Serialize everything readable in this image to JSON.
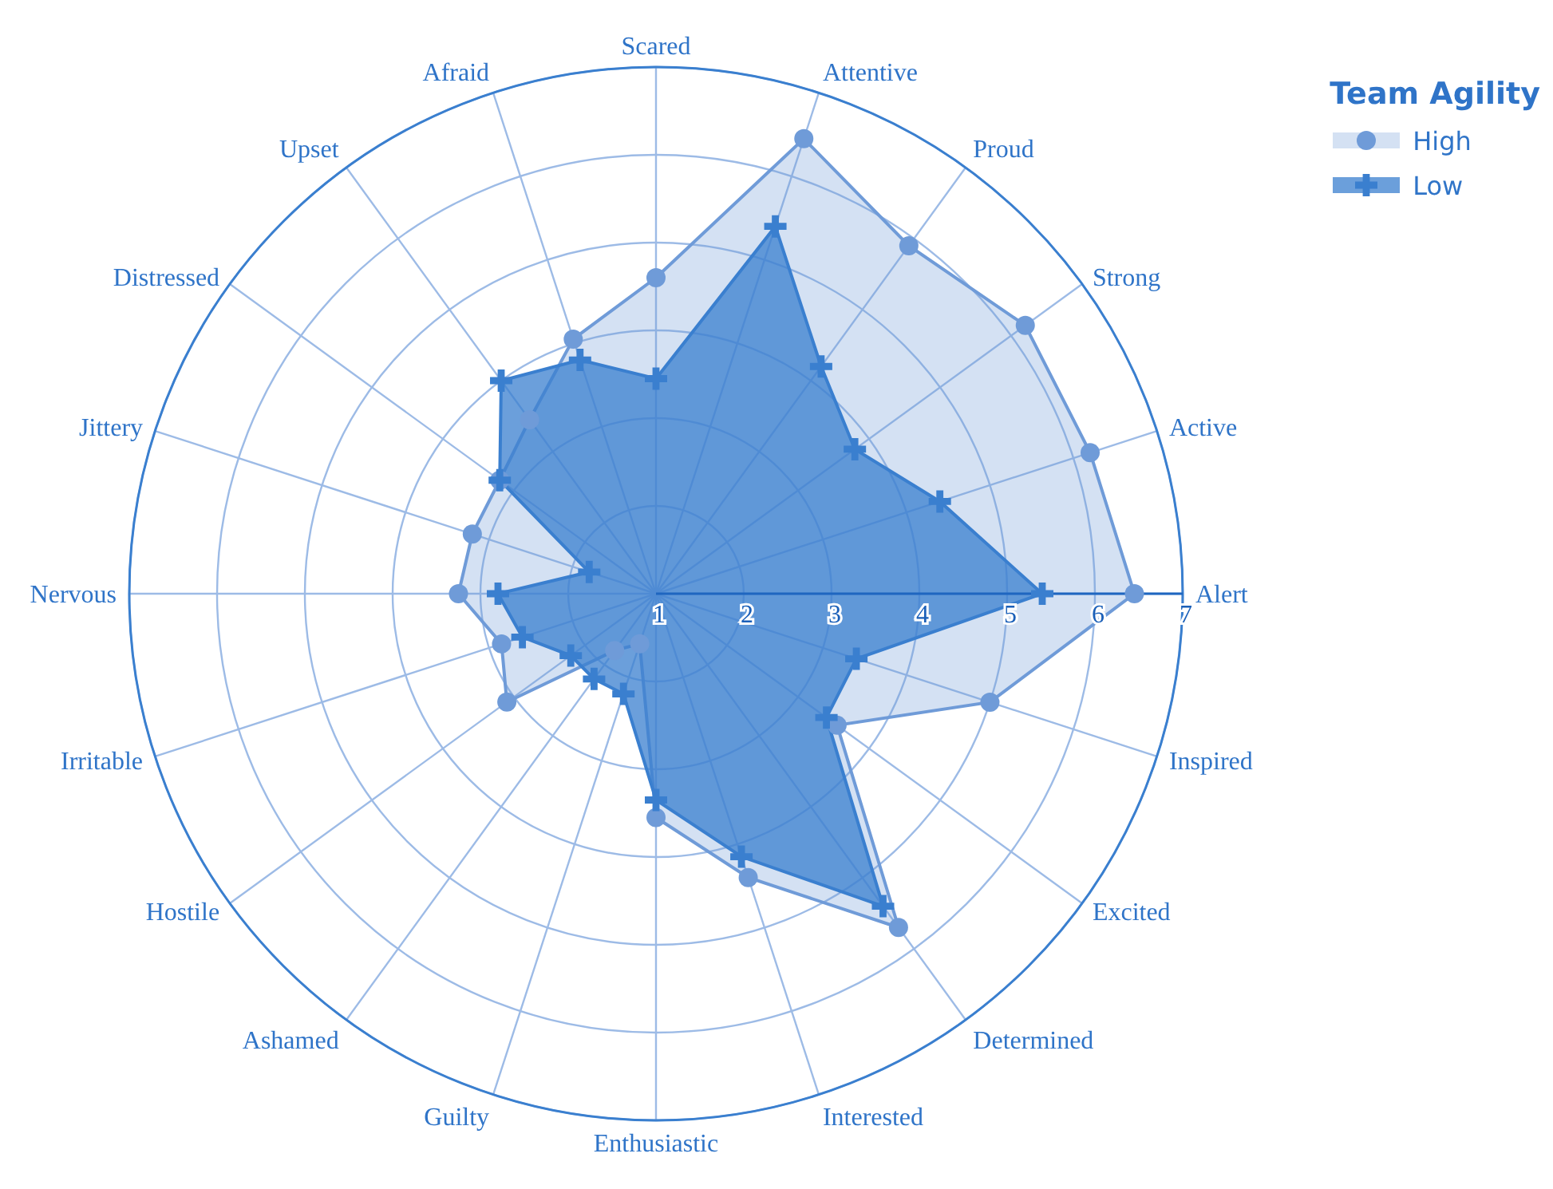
{
  "chart_data": {
    "type": "radar",
    "categories": [
      "Scared",
      "Attentive",
      "Proud",
      "Strong",
      "Active",
      "Alert",
      "Inspired",
      "Excited",
      "Determined",
      "Interested",
      "Enthusiastic",
      "Guilty",
      "Ashamed",
      "Hostile",
      "Irritable",
      "Nervous",
      "Jittery",
      "Distressed",
      "Upset",
      "Afraid"
    ],
    "legend_title": "Team Agility",
    "series": [
      {
        "name": "High",
        "color": "#6f9bd8",
        "marker": "circle",
        "values": [
          4.6,
          6.45,
          5.9,
          6.2,
          6.2,
          6.45,
          5.0,
          3.55,
          5.7,
          4.4,
          3.55,
          1.6,
          1.8,
          3.1,
          2.85,
          3.25,
          3.2,
          3.2,
          3.45,
          4.05
        ]
      },
      {
        "name": "Low",
        "color": "#3a7fcf",
        "marker": "cross",
        "values": [
          3.45,
          5.4,
          4.2,
          3.8,
          4.4,
          5.4,
          3.4,
          3.4,
          5.4,
          4.15,
          3.35,
          2.2,
          2.2,
          2.2,
          2.6,
          2.8,
          1.8,
          3.2,
          4.0,
          3.8
        ]
      }
    ],
    "ylim": [
      1,
      7
    ],
    "yticks": [
      1,
      2,
      3,
      4,
      5,
      6,
      7
    ],
    "grid": true,
    "legend": "top right"
  }
}
